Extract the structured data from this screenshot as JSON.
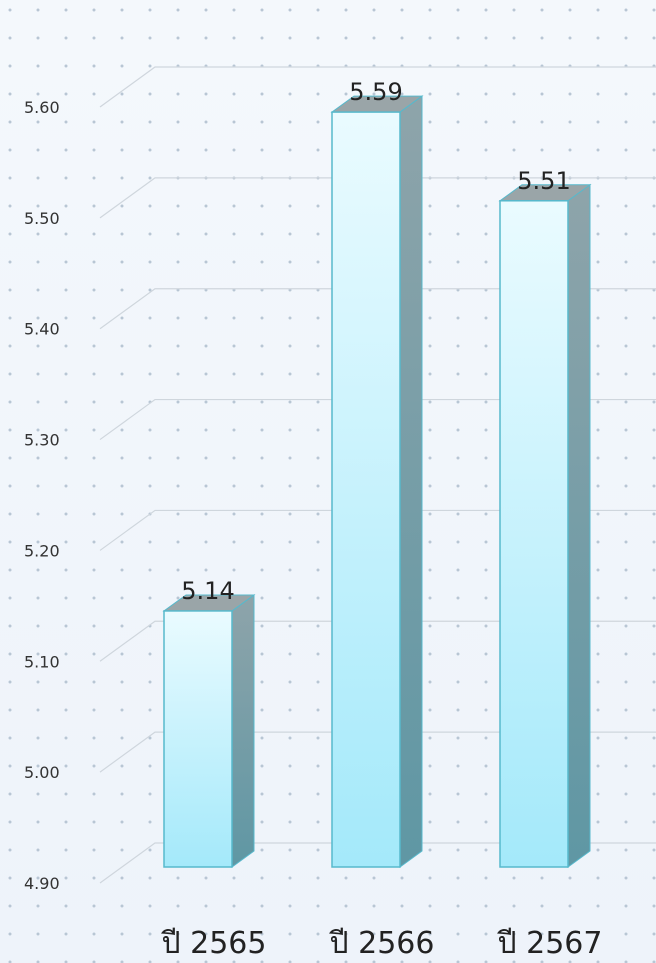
{
  "chart_data": {
    "type": "bar",
    "categories": [
      "ปี 2565",
      "ปี 2566",
      "ปี 2567"
    ],
    "values": [
      5.14,
      5.59,
      5.51
    ],
    "value_labels": [
      "5.14",
      "5.59",
      "5.51"
    ],
    "ylim": [
      4.9,
      5.6
    ],
    "y_ticks": [
      "4.90",
      "5.00",
      "5.10",
      "5.20",
      "5.30",
      "5.40",
      "5.50",
      "5.60"
    ],
    "y_tick_values": [
      4.9,
      5.0,
      5.1,
      5.2,
      5.3,
      5.4,
      5.5,
      5.6
    ],
    "grid": true,
    "style": "3d-column",
    "colors": {
      "bar_front_top": "#eafbff",
      "bar_front_bottom": "#a4e9fa",
      "bar_side": "#6f9ca6",
      "bar_top": "#9aa5a8",
      "bar_outline": "#57b9cc",
      "grid": "#cfd6dd",
      "dots": "#b8c6d4"
    }
  }
}
